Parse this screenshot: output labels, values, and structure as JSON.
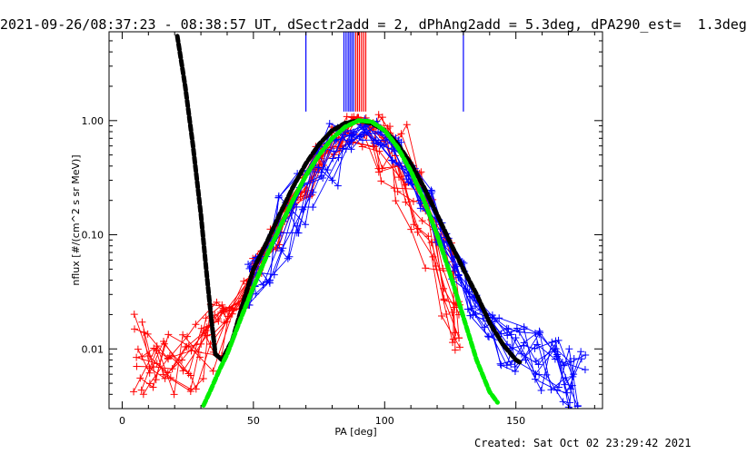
{
  "header": {
    "title": "2021-09-26/08:37:23 - 08:38:57 UT, dSectr2add = 2, dPhAng2add = 5.3deg, dPA290_est=  1.3deg"
  },
  "footer": {
    "created": "Created: Sat Oct 02 23:29:42 2021"
  },
  "colors": {
    "red": "#ff0000",
    "blue": "#0000ff",
    "black": "#000000",
    "green": "#00ee00"
  },
  "chart_data": {
    "type": "line",
    "xlabel": "PA [deg]",
    "ylabel": "nflux [#/(cm^2 s sr MeV)]",
    "xlim": [
      -5,
      183
    ],
    "ylim": [
      0.003,
      6
    ],
    "y_scale": "log",
    "x_ticks": [
      0,
      50,
      100,
      150
    ],
    "x_tick_labels": [
      "0",
      "50",
      "100",
      "150"
    ],
    "y_ticks": [
      0.01,
      0.1,
      1.0
    ],
    "y_tick_labels": [
      "0.01",
      "0.10",
      "1.00"
    ],
    "grid": false,
    "vertical_markers": [
      {
        "x": 70,
        "color": "blue"
      },
      {
        "x": 84.5,
        "color": "blue"
      },
      {
        "x": 85.3,
        "color": "blue"
      },
      {
        "x": 86.1,
        "color": "blue"
      },
      {
        "x": 86.8,
        "color": "blue"
      },
      {
        "x": 87.5,
        "color": "blue"
      },
      {
        "x": 88.2,
        "color": "blue"
      },
      {
        "x": 89.0,
        "color": "red"
      },
      {
        "x": 89.7,
        "color": "red"
      },
      {
        "x": 90.4,
        "color": "red"
      },
      {
        "x": 91.2,
        "color": "red"
      },
      {
        "x": 92.0,
        "color": "red"
      },
      {
        "x": 92.8,
        "color": "red"
      },
      {
        "x": 130,
        "color": "blue"
      }
    ],
    "series": [
      {
        "color": "black",
        "style": "dashed-thick",
        "x": [
          21,
          24,
          27,
          30,
          32,
          34,
          35.5,
          38,
          42,
          46,
          50,
          55,
          60,
          65,
          70,
          75,
          80,
          85,
          90,
          95,
          100,
          105,
          110,
          115,
          120,
          125,
          130,
          135,
          140,
          145,
          150,
          152
        ],
        "y": [
          5.5,
          2.0,
          0.6,
          0.15,
          0.05,
          0.018,
          0.009,
          0.008,
          0.012,
          0.025,
          0.05,
          0.085,
          0.15,
          0.26,
          0.42,
          0.62,
          0.82,
          0.95,
          1.0,
          0.95,
          0.82,
          0.62,
          0.42,
          0.26,
          0.15,
          0.085,
          0.05,
          0.03,
          0.017,
          0.011,
          0.008,
          0.0075
        ]
      },
      {
        "color": "green",
        "style": "dashed-thick",
        "x": [
          31,
          34,
          37,
          40,
          45,
          50,
          55,
          60,
          65,
          70,
          75,
          80,
          85,
          90,
          95,
          100,
          105,
          110,
          115,
          120,
          125,
          130,
          135,
          140,
          143
        ],
        "y": [
          0.0032,
          0.0045,
          0.0065,
          0.009,
          0.018,
          0.035,
          0.065,
          0.115,
          0.2,
          0.33,
          0.5,
          0.7,
          0.88,
          1.0,
          0.98,
          0.82,
          0.58,
          0.36,
          0.2,
          0.1,
          0.045,
          0.019,
          0.008,
          0.0042,
          0.0034
        ]
      },
      {
        "color": "red",
        "style": "crosses",
        "x": [
          6,
          12,
          18,
          24,
          30,
          36,
          40,
          46,
          52,
          58,
          64,
          70,
          76,
          82,
          88,
          94,
          100,
          106,
          112,
          118,
          124,
          128
        ],
        "y": [
          0.009,
          0.007,
          0.006,
          0.008,
          0.01,
          0.013,
          0.018,
          0.03,
          0.055,
          0.09,
          0.16,
          0.28,
          0.45,
          0.65,
          0.82,
          0.8,
          0.62,
          0.42,
          0.22,
          0.1,
          0.04,
          0.02
        ]
      },
      {
        "color": "blue",
        "style": "crosses",
        "x": [
          50,
          56,
          62,
          68,
          74,
          80,
          86,
          92,
          98,
          104,
          110,
          116,
          122,
          128,
          134,
          140,
          146,
          152,
          158,
          164,
          170,
          174
        ],
        "y": [
          0.04,
          0.07,
          0.12,
          0.2,
          0.33,
          0.5,
          0.7,
          0.85,
          0.78,
          0.55,
          0.35,
          0.2,
          0.1,
          0.05,
          0.025,
          0.016,
          0.012,
          0.009,
          0.008,
          0.007,
          0.006,
          0.005
        ]
      }
    ]
  }
}
